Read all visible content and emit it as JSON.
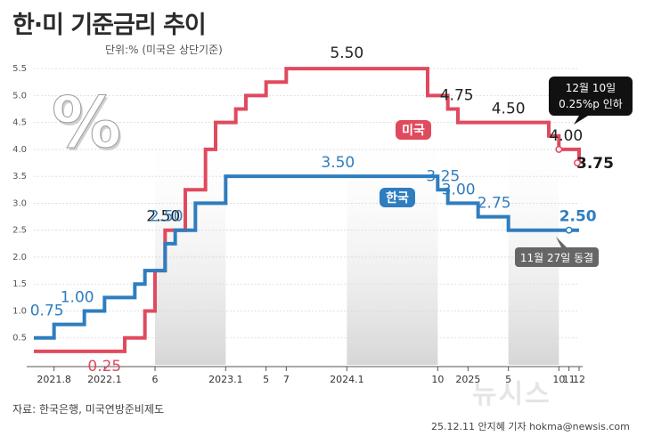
{
  "title": "한·미 기준금리 추이",
  "unit_note": "단위:% (미국은 상단기준)",
  "source": "자료: 한국은행, 미국연방준비제도",
  "credit": "25.12.11 안지혜 기자 hokma@newsis.com",
  "watermark": "뉴시스",
  "percent_symbol": "%",
  "colors": {
    "us": "#e04a5e",
    "korea": "#2f7dbf",
    "dark": "#1a1a1a"
  },
  "chart_data": {
    "type": "line",
    "step": true,
    "title": "한·미 기준금리 추이",
    "ylim": [
      0,
      5.75
    ],
    "y_ticks": [
      "0.5",
      "1.0",
      "1.5",
      "2.0",
      "2.5",
      "3.0",
      "3.5",
      "4.0",
      "4.5",
      "5.0",
      "5.5"
    ],
    "grid": true,
    "x_ticks": [
      "2021.8",
      "2022.1",
      "6",
      "2023.1",
      "5",
      "7",
      "2024.1",
      "10",
      "2025",
      "5",
      "10",
      "11",
      "12"
    ],
    "series": [
      {
        "name": "미국",
        "key": "us",
        "points": [
          [
            "2021-06",
            0.25
          ],
          [
            "2022-03",
            0.5
          ],
          [
            "2022-05",
            1.0
          ],
          [
            "2022-06",
            1.75
          ],
          [
            "2022-07",
            2.5
          ],
          [
            "2022-09",
            3.25
          ],
          [
            "2022-11",
            4.0
          ],
          [
            "2022-12",
            4.5
          ],
          [
            "2023-02",
            4.75
          ],
          [
            "2023-03",
            5.0
          ],
          [
            "2023-05",
            5.25
          ],
          [
            "2023-07",
            5.5
          ],
          [
            "2024-09",
            5.0
          ],
          [
            "2024-11",
            4.75
          ],
          [
            "2024-12",
            4.5
          ],
          [
            "2025-09",
            4.25
          ],
          [
            "2025-10",
            4.0
          ],
          [
            "2025-12",
            3.75
          ]
        ],
        "labels": [
          {
            "text": "0.25",
            "at": [
              "2022-01",
              0.25
            ]
          },
          {
            "text": "2.50",
            "at": [
              "2022-07",
              2.5
            ]
          },
          {
            "text": "5.50",
            "at": [
              "2024-01",
              5.5
            ]
          },
          {
            "text": "4.75",
            "at": [
              "2024-11",
              4.75
            ]
          },
          {
            "text": "4.50",
            "at": [
              "2025-05",
              4.5
            ]
          },
          {
            "text": "4.00",
            "at": [
              "2025-10",
              4.0
            ]
          },
          {
            "text": "3.75",
            "at": [
              "2025-12",
              3.75
            ]
          }
        ],
        "badge": "미국"
      },
      {
        "name": "한국",
        "key": "korea",
        "points": [
          [
            "2021-06",
            0.5
          ],
          [
            "2021-08",
            0.75
          ],
          [
            "2021-11",
            1.0
          ],
          [
            "2022-01",
            1.25
          ],
          [
            "2022-04",
            1.5
          ],
          [
            "2022-05",
            1.75
          ],
          [
            "2022-07",
            2.25
          ],
          [
            "2022-08",
            2.5
          ],
          [
            "2022-10",
            3.0
          ],
          [
            "2023-01",
            3.5
          ],
          [
            "2024-10",
            3.25
          ],
          [
            "2024-11",
            3.0
          ],
          [
            "2025-02",
            2.75
          ],
          [
            "2025-05",
            2.5
          ],
          [
            "2025-12",
            2.5
          ]
        ],
        "labels": [
          {
            "text": "0.75",
            "at": [
              "2021-08",
              0.75
            ]
          },
          {
            "text": "1.00",
            "at": [
              "2021-11",
              1.0
            ]
          },
          {
            "text": "2.50",
            "at": [
              "2022-08",
              2.5
            ]
          },
          {
            "text": "3.50",
            "at": [
              "2024-01",
              3.5
            ]
          },
          {
            "text": "3.25",
            "at": [
              "2024-10",
              3.25
            ]
          },
          {
            "text": "3.00",
            "at": [
              "2024-11",
              3.0
            ]
          },
          {
            "text": "2.75",
            "at": [
              "2025-02",
              2.75
            ]
          },
          {
            "text": "2.50",
            "at": [
              "2025-11",
              2.5
            ]
          }
        ],
        "badge": "한국"
      }
    ],
    "annotations": [
      {
        "text_lines": [
          "12월 10일",
          "0.25%p 인하"
        ],
        "series": "us",
        "at": [
          "2025-12",
          3.75
        ]
      },
      {
        "text_lines": [
          "11월 27일 동결"
        ],
        "series": "korea",
        "at": [
          "2025-11",
          2.5
        ]
      }
    ],
    "shaded_periods": [
      [
        "2022-06",
        "2023-01"
      ],
      [
        "2024-01",
        "2024-10"
      ],
      [
        "2025-05",
        "2025-10"
      ]
    ]
  }
}
